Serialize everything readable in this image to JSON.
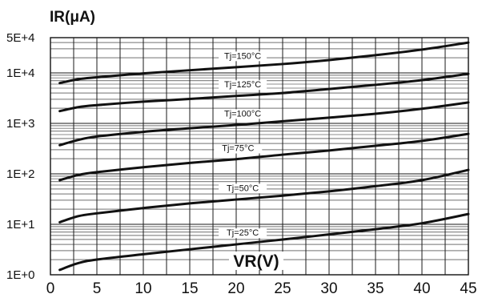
{
  "chart_data": {
    "type": "line",
    "ylabel": "IR(μA)",
    "xlabel": "VR(V)",
    "y_scale": "log",
    "ylim": [
      1,
      50000
    ],
    "xlim": [
      0,
      45
    ],
    "grid": true,
    "x_ticks": [
      "0",
      "5",
      "10",
      "15",
      "20",
      "25",
      "30",
      "35",
      "40",
      "45"
    ],
    "y_ticks": [
      {
        "label": "1E+0",
        "value": 1
      },
      {
        "label": "1E+1",
        "value": 10
      },
      {
        "label": "1E+2",
        "value": 100
      },
      {
        "label": "1E+3",
        "value": 1000
      },
      {
        "label": "1E+4",
        "value": 10000
      },
      {
        "label": "5E+4",
        "value": 50000
      }
    ],
    "series": [
      {
        "name": "Tj=150°C",
        "label_x": 20.7,
        "x": [
          1,
          3,
          5,
          10,
          15,
          20,
          25,
          30,
          35,
          40,
          45
        ],
        "y": [
          6300,
          7500,
          8200,
          9800,
          11300,
          13000,
          15000,
          18000,
          22500,
          29000,
          40000
        ]
      },
      {
        "name": "Tj=125°C",
        "label_x": 20.7,
        "x": [
          1,
          3,
          5,
          10,
          15,
          20,
          25,
          30,
          35,
          40,
          45
        ],
        "y": [
          1750,
          2100,
          2300,
          2700,
          3050,
          3500,
          4000,
          4800,
          5800,
          7200,
          9600
        ]
      },
      {
        "name": "Tj=100°C",
        "label_x": 20.7,
        "x": [
          1,
          3,
          5,
          10,
          15,
          20,
          25,
          30,
          35,
          40,
          45
        ],
        "y": [
          370,
          470,
          550,
          680,
          800,
          930,
          1100,
          1300,
          1550,
          1950,
          2600
        ]
      },
      {
        "name": "Tj=75°C",
        "label_x": 20.2,
        "x": [
          1,
          3,
          5,
          10,
          15,
          20,
          25,
          30,
          35,
          40,
          45
        ],
        "y": [
          75,
          95,
          108,
          135,
          165,
          195,
          240,
          290,
          360,
          450,
          620
        ]
      },
      {
        "name": "Tj=50°C",
        "label_x": 20.7,
        "x": [
          1,
          3,
          5,
          10,
          15,
          20,
          25,
          30,
          35,
          40,
          45
        ],
        "y": [
          11,
          14.5,
          16.5,
          21,
          26,
          31,
          37,
          45,
          57,
          75,
          120
        ]
      },
      {
        "name": "Tj=25°C",
        "label_x": 20.7,
        "x": [
          1,
          3,
          5,
          10,
          15,
          20,
          25,
          30,
          35,
          40,
          45
        ],
        "y": [
          1.25,
          1.7,
          2.0,
          2.55,
          3.2,
          4.0,
          5.0,
          6.3,
          8.0,
          10.5,
          16
        ]
      }
    ]
  }
}
